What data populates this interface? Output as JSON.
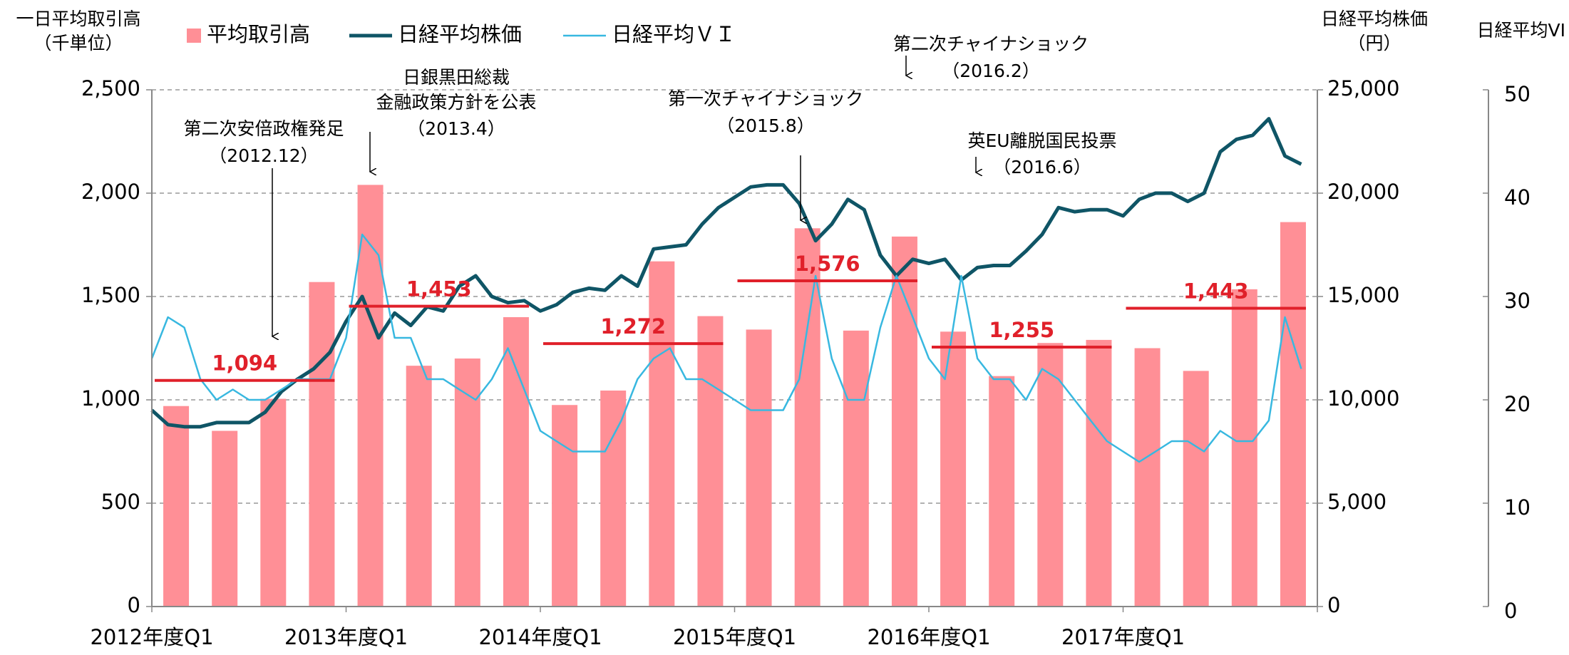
{
  "chart_data": {
    "type": "bar",
    "y_title": [
      "一日平均取引高",
      "（千単位）"
    ],
    "y2_title": [
      "日経平均株価",
      "（円）"
    ],
    "y3_title": "日経平均VI",
    "xlim": [
      2012,
      2018
    ],
    "xticks": [
      {
        "value": 2012,
        "label": "2012年度Q1"
      },
      {
        "value": 2013,
        "label": "2013年度Q1"
      },
      {
        "value": 2014,
        "label": "2014年度Q1"
      },
      {
        "value": 2015,
        "label": "2015年度Q1"
      },
      {
        "value": 2016,
        "label": "2016年度Q1"
      },
      {
        "value": 2017,
        "label": "2017年度Q1"
      }
    ],
    "ylim": [
      0,
      2500
    ],
    "yticks": [
      0,
      500,
      {
        "value": 1000,
        "label": "1,000"
      },
      {
        "value": 1500,
        "label": "1,500"
      },
      {
        "value": 2000,
        "label": "2,000"
      },
      {
        "value": 2500,
        "label": "2,500"
      }
    ],
    "y2lim": [
      0,
      25000
    ],
    "y2ticks": [
      0,
      {
        "value": 5000,
        "label": "5,000"
      },
      {
        "value": 10000,
        "label": "10,000"
      },
      {
        "value": 15000,
        "label": "15,000"
      },
      {
        "value": 20000,
        "label": "20,000"
      },
      {
        "value": 25000,
        "label": "25,000"
      }
    ],
    "y3lim": [
      0,
      50
    ],
    "y3ticks": [
      0,
      10,
      20,
      30,
      40,
      50
    ],
    "grid": true,
    "x": [
      2012,
      2012.083,
      2012.167,
      2012.25,
      2012.333,
      2012.417,
      2012.5,
      2012.583,
      2012.667,
      2012.75,
      2012.833,
      2012.917,
      2013,
      2013.083,
      2013.167,
      2013.25,
      2013.333,
      2013.417,
      2013.5,
      2013.583,
      2013.667,
      2013.75,
      2013.833,
      2013.917,
      2014,
      2014.083,
      2014.167,
      2014.25,
      2014.333,
      2014.417,
      2014.5,
      2014.583,
      2014.667,
      2014.75,
      2014.833,
      2014.917,
      2015,
      2015.083,
      2015.167,
      2015.25,
      2015.333,
      2015.417,
      2015.5,
      2015.583,
      2015.667,
      2015.75,
      2015.833,
      2015.917,
      2016,
      2016.083,
      2016.167,
      2016.25,
      2016.333,
      2016.417,
      2016.5,
      2016.583,
      2016.667,
      2016.75,
      2016.833,
      2016.917,
      2017,
      2017.083,
      2017.167,
      2017.25,
      2017.333,
      2017.417,
      2017.5,
      2017.583,
      2017.667,
      2017.75,
      2017.833,
      2017.917
    ],
    "series": [
      {
        "name": "平均取引高",
        "type": "bar",
        "color": "#ff8f96",
        "x": [
          2012.125,
          2012.375,
          2012.625,
          2012.875,
          2013.125,
          2013.375,
          2013.625,
          2013.875,
          2014.125,
          2014.375,
          2014.625,
          2014.875,
          2015.125,
          2015.375,
          2015.625,
          2015.875,
          2016.125,
          2016.375,
          2016.625,
          2016.875,
          2017.125,
          2017.375,
          2017.625,
          2017.875
        ],
        "values": [
          970,
          850,
          1005,
          1570,
          2040,
          1165,
          1200,
          1400,
          975,
          1045,
          1670,
          1405,
          1340,
          1830,
          1335,
          1790,
          1330,
          1115,
          1275,
          1290,
          1250,
          1140,
          1535,
          1860
        ]
      },
      {
        "name": "日経平均株価",
        "type": "line",
        "axis": "y2",
        "color": "#0f5566",
        "values": [
          9500,
          8800,
          8700,
          8700,
          8900,
          8900,
          8900,
          9400,
          10400,
          11000,
          11500,
          12300,
          13800,
          15000,
          13000,
          14200,
          13600,
          14500,
          14300,
          15500,
          16000,
          15000,
          14700,
          14800,
          14300,
          14600,
          15200,
          15400,
          15300,
          16000,
          15500,
          17300,
          17400,
          17500,
          18500,
          19300,
          19800,
          20300,
          20400,
          20400,
          19500,
          17700,
          18500,
          19700,
          19200,
          17000,
          16000,
          16800,
          16600,
          16800,
          15800,
          16400,
          16500,
          16500,
          17200,
          18000,
          19300,
          19100,
          19200,
          19200,
          18900,
          19700,
          20000,
          20000,
          19600,
          20000,
          22000,
          22600,
          22800,
          23600,
          21800,
          21400
        ]
      },
      {
        "name": "日経平均ＶＩ",
        "type": "line",
        "axis": "y3",
        "color": "#38b8e0",
        "values": [
          24,
          28,
          27,
          22,
          20,
          21,
          20,
          20,
          21,
          22,
          22,
          22,
          26,
          36,
          34,
          26,
          26,
          22,
          22,
          21,
          20,
          22,
          25,
          21,
          17,
          16,
          15,
          15,
          15,
          18,
          22,
          24,
          25,
          22,
          22,
          21,
          20,
          19,
          19,
          19,
          22,
          32,
          24,
          20,
          20,
          27,
          32,
          28,
          24,
          22,
          32,
          24,
          22,
          22,
          20,
          23,
          22,
          20,
          18,
          16,
          15,
          14,
          15,
          16,
          16,
          15,
          17,
          16,
          16,
          18,
          28,
          23
        ]
      },
      {
        "type": "annual",
        "color": "#e0202a",
        "x": [
          2012,
          2013,
          2014,
          2015,
          2016,
          2017
        ],
        "values": [
          1094,
          1453,
          1272,
          1576,
          1255,
          1443
        ],
        "value_labels": [
          "1,094",
          "1,453",
          "1,272",
          "1,576",
          "1,255",
          "1,443"
        ]
      }
    ],
    "annotations": [
      {
        "lines": [
          "第二次安倍政権発足",
          "（2012.12）"
        ]
      },
      {
        "lines": [
          "日銀黒田総裁",
          "金融政策方針を公表",
          "（2013.4）"
        ]
      },
      {
        "lines": [
          "第一次チャイナショック",
          "（2015.8）"
        ]
      },
      {
        "lines": [
          "第二次チャイナショック",
          "（2016.2）"
        ]
      },
      {
        "lines": [
          "英EU離脱国民投票",
          "（2016.6）"
        ]
      }
    ]
  }
}
